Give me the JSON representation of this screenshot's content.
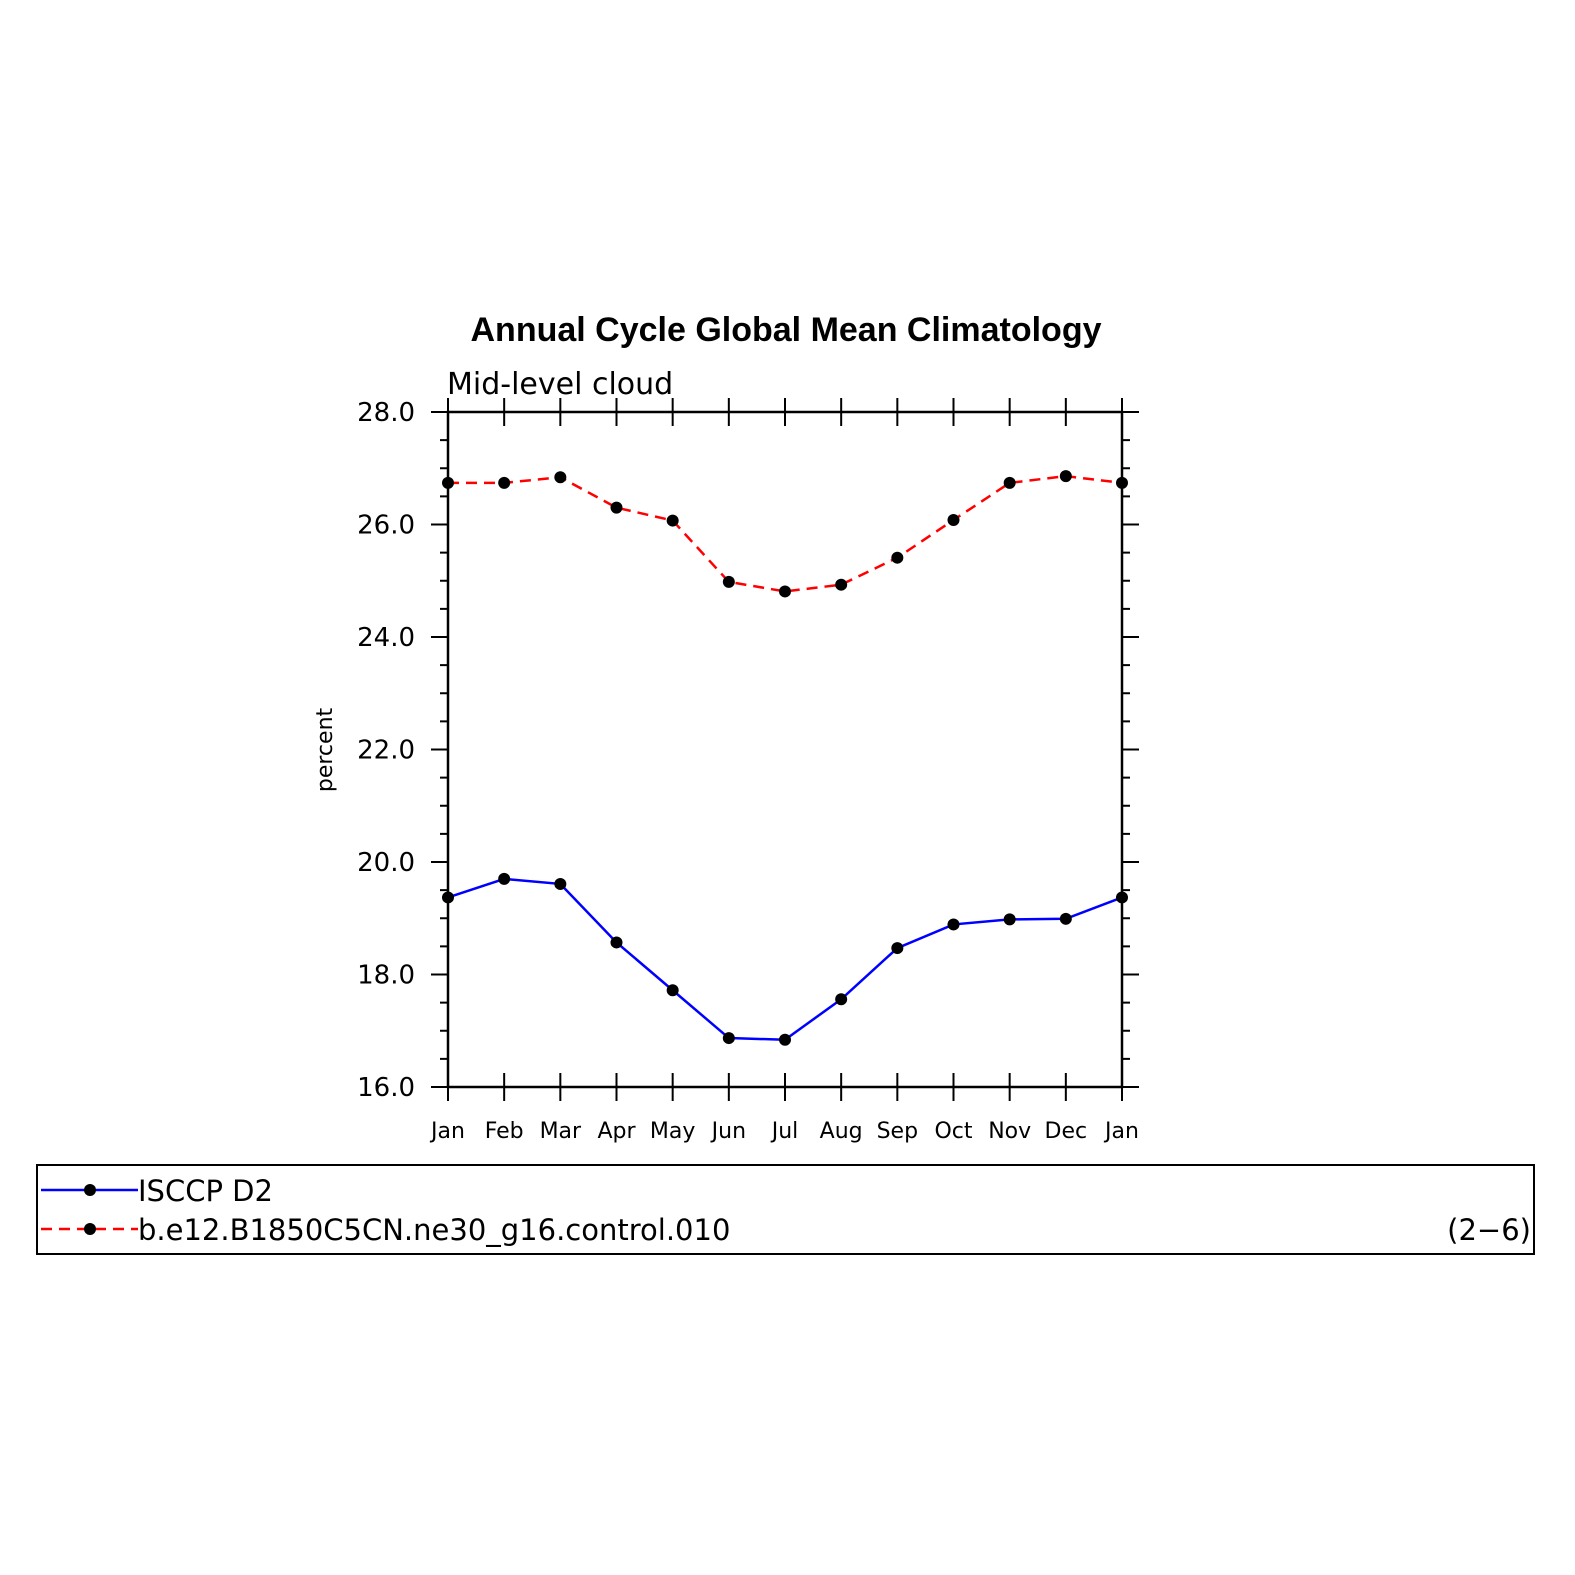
{
  "chart_data": {
    "type": "line",
    "title": "Annual Cycle Global Mean Climatology",
    "subtitle": "Mid-level cloud",
    "ylabel": "percent",
    "xlabel": "",
    "ylim": [
      16.0,
      28.0
    ],
    "yticks": [
      "16.0",
      "18.0",
      "20.0",
      "22.0",
      "24.0",
      "26.0",
      "28.0"
    ],
    "categories": [
      "Jan",
      "Feb",
      "Mar",
      "Apr",
      "May",
      "Jun",
      "Jul",
      "Aug",
      "Sep",
      "Oct",
      "Nov",
      "Dec",
      "Jan"
    ],
    "series": [
      {
        "name": "ISCCP D2",
        "color": "#0000ff",
        "dash": "solid",
        "values": [
          19.37,
          19.7,
          19.61,
          18.57,
          17.72,
          16.87,
          16.84,
          17.56,
          18.47,
          18.89,
          18.98,
          18.99,
          19.37
        ]
      },
      {
        "name": "b.e12.B1850C5CN.ne30_g16.control.010",
        "color": "#ff0000",
        "dash": "dashed",
        "values": [
          26.74,
          26.74,
          26.84,
          26.3,
          26.07,
          24.98,
          24.81,
          24.93,
          25.41,
          26.08,
          26.74,
          26.86,
          26.74
        ]
      }
    ],
    "grid": false,
    "legend_position": "bottom",
    "legend_note": "(2−6)"
  }
}
